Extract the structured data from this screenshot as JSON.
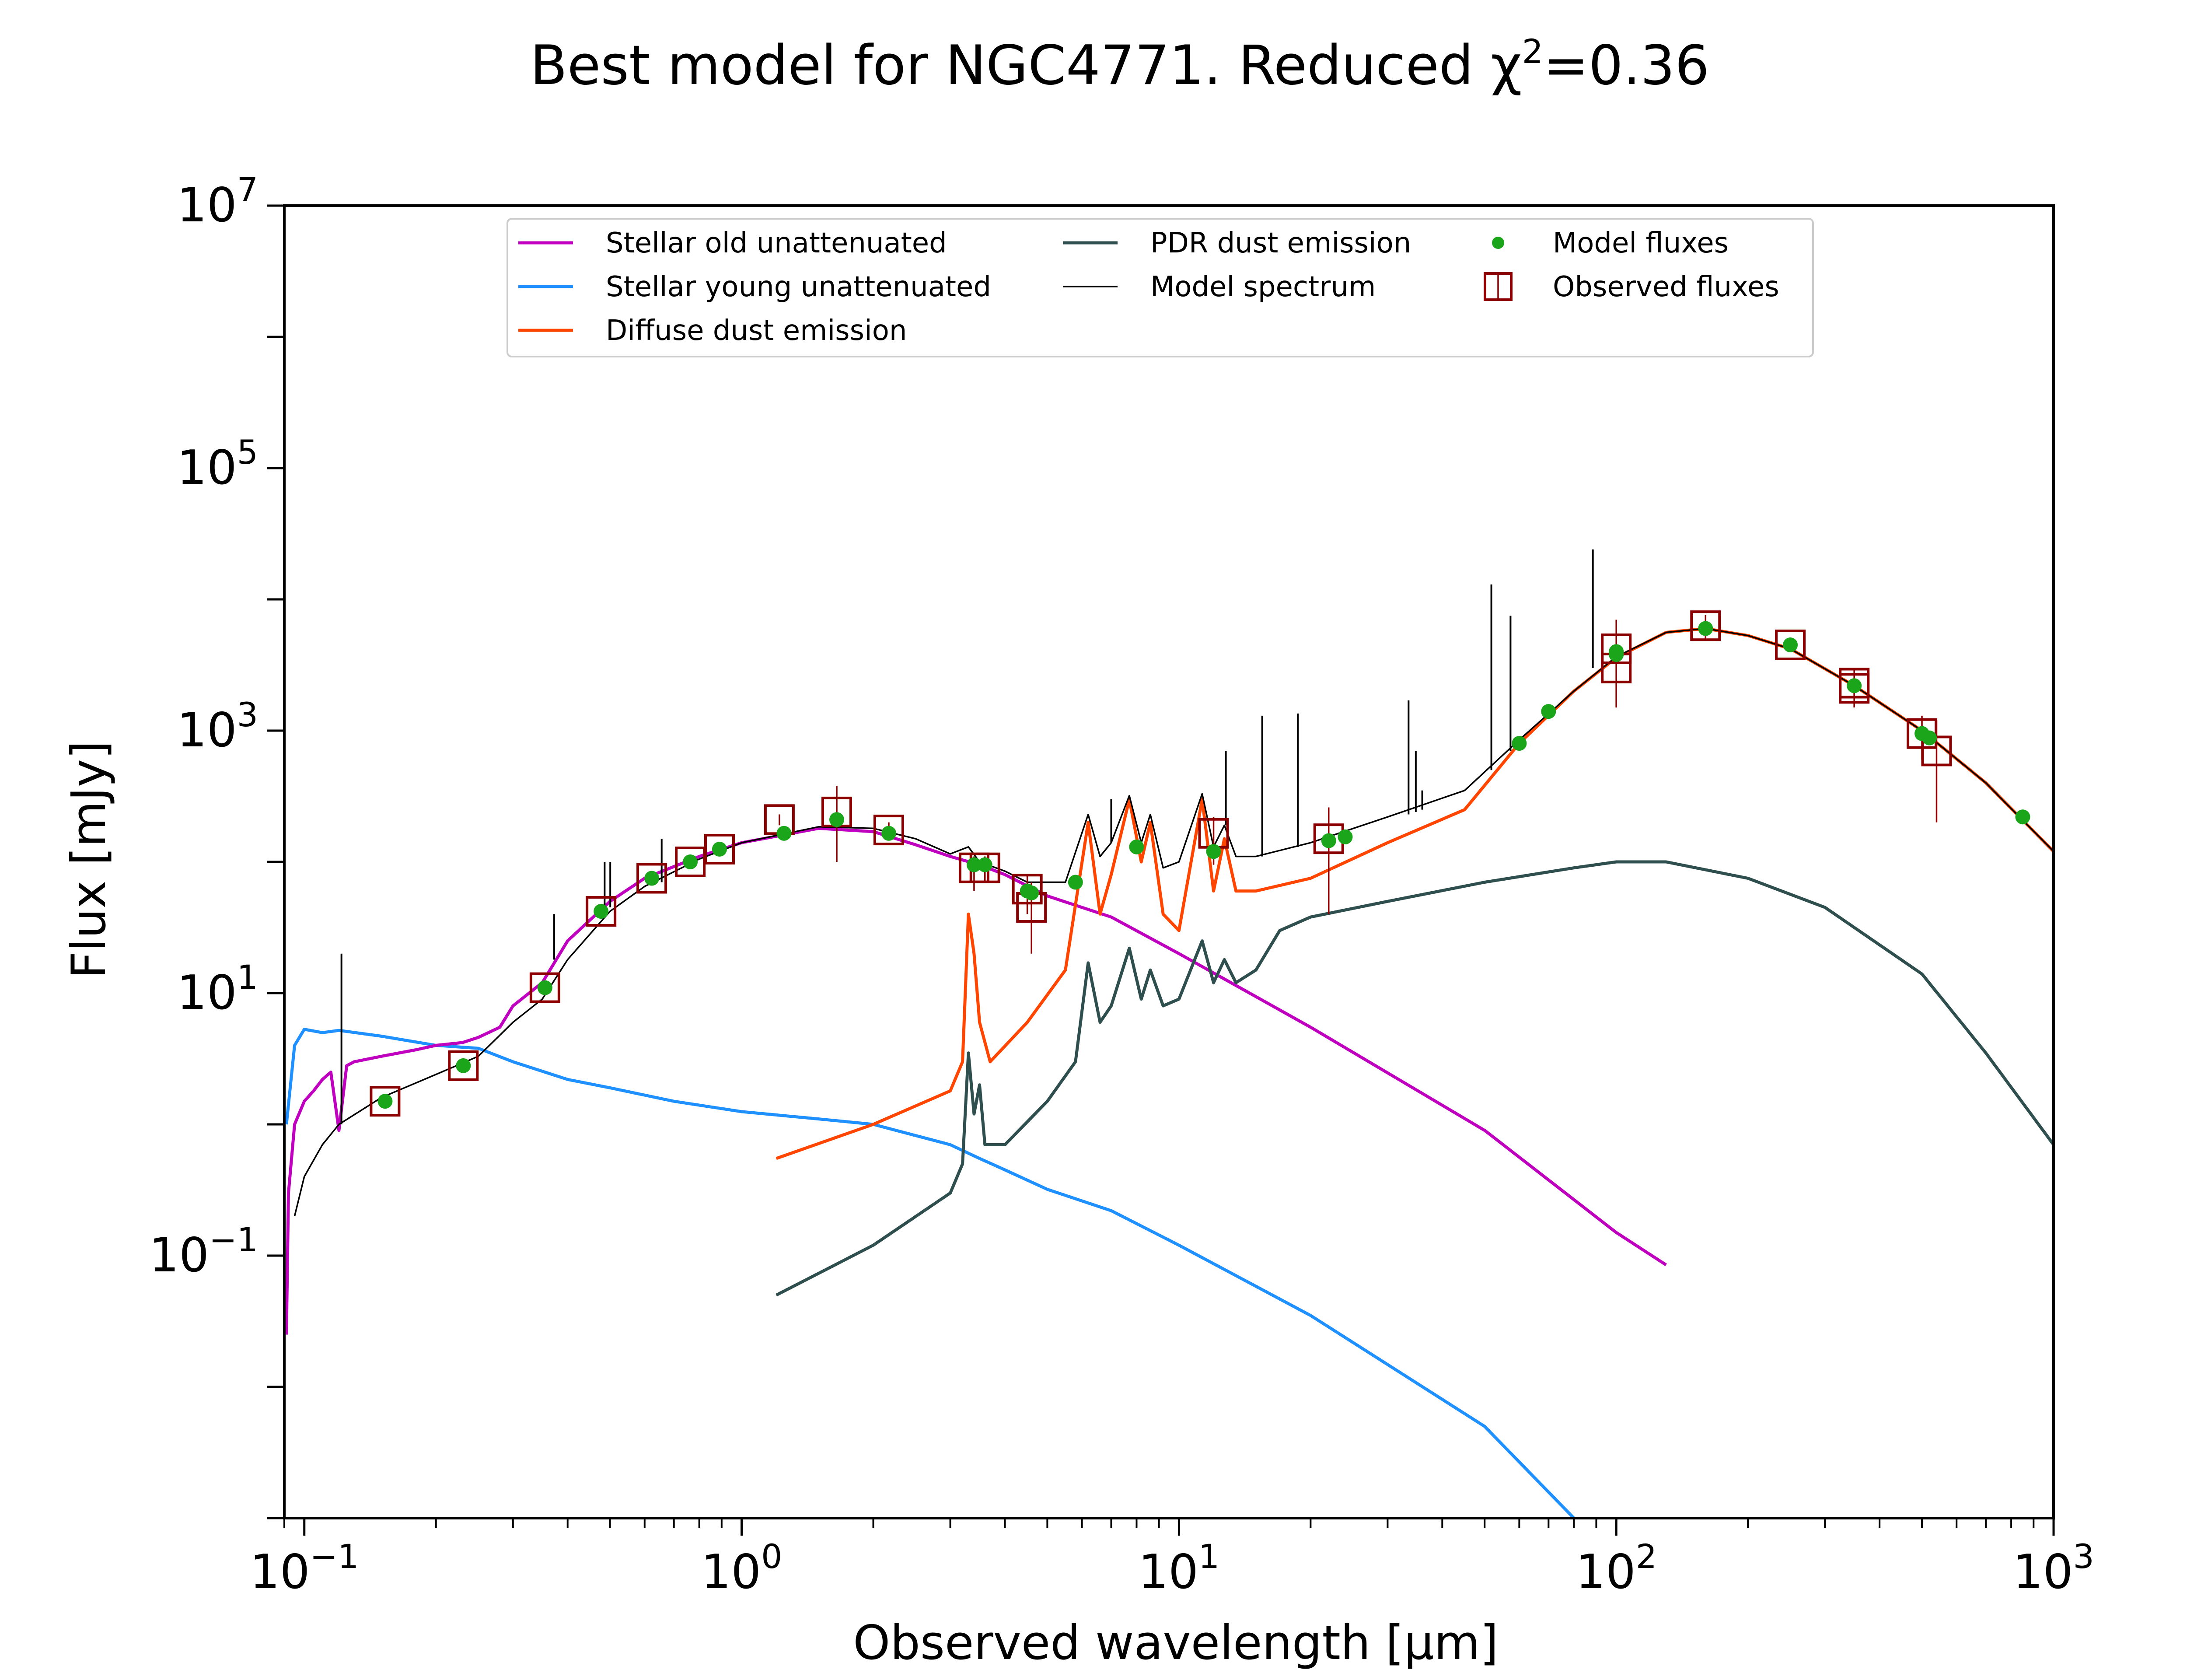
{
  "title": {
    "main": "Best model for NGC4771. Reduced χ",
    "sup": "2",
    "value": "=0.36"
  },
  "legend": {
    "placement": "top-center",
    "items": [
      {
        "key": "stellar_old",
        "label": "Stellar old unattenuated",
        "kind": "line"
      },
      {
        "key": "stellar_young",
        "label": "Stellar young unattenuated",
        "kind": "line"
      },
      {
        "key": "diffuse_dust",
        "label": "Diffuse dust emission",
        "kind": "line"
      },
      {
        "key": "pdr_dust",
        "label": "PDR dust emission",
        "kind": "line"
      },
      {
        "key": "model_spectrum",
        "label": "Model spectrum",
        "kind": "line"
      },
      {
        "key": "model_fluxes",
        "label": "Model fluxes",
        "kind": "dot"
      },
      {
        "key": "observed_fluxes",
        "label": "Observed fluxes",
        "kind": "square"
      }
    ]
  },
  "colors": {
    "stellar_old": "#BF00BF",
    "stellar_young": "#1E90FF",
    "diffuse_dust": "#FF4500",
    "pdr_dust": "#2F4F4F",
    "model_spectrum": "#000000",
    "model_fluxes": "#1AA51A",
    "observed_fluxes": "#8B0000"
  },
  "chart_data": {
    "type": "line",
    "title": "Best model for NGC4771. Reduced χ²=0.36",
    "xlabel": "Observed wavelength [μm]",
    "ylabel": "Flux [mJy]",
    "xscale": "log",
    "yscale": "log",
    "xlim": [
      0.09,
      1000
    ],
    "ylim": [
      0.001,
      10000000
    ],
    "grid": false,
    "x_ticks": [
      {
        "value": 0.1,
        "base": "10",
        "exp": "−1"
      },
      {
        "value": 1,
        "base": "10",
        "exp": "0"
      },
      {
        "value": 10,
        "base": "10",
        "exp": "1"
      },
      {
        "value": 100,
        "base": "10",
        "exp": "2"
      },
      {
        "value": 1000,
        "base": "10",
        "exp": "3"
      }
    ],
    "y_ticks": [
      {
        "value": 0.1,
        "base": "10",
        "exp": "−1"
      },
      {
        "value": 10,
        "base": "10",
        "exp": "1"
      },
      {
        "value": 1000,
        "base": "10",
        "exp": "3"
      },
      {
        "value": 100000,
        "base": "10",
        "exp": "5"
      },
      {
        "value": 10000000,
        "base": "10",
        "exp": "7"
      }
    ],
    "series": [
      {
        "name": "Stellar old unattenuated",
        "key": "stellar_old",
        "points": [
          [
            0.091,
            0.025
          ],
          [
            0.092,
            0.3
          ],
          [
            0.095,
            1.0
          ],
          [
            0.1,
            1.5
          ],
          [
            0.105,
            1.8
          ],
          [
            0.11,
            2.2
          ],
          [
            0.115,
            2.5
          ],
          [
            0.12,
            0.9
          ],
          [
            0.125,
            2.8
          ],
          [
            0.13,
            3.0
          ],
          [
            0.15,
            3.3
          ],
          [
            0.18,
            3.7
          ],
          [
            0.2,
            4.0
          ],
          [
            0.23,
            4.2
          ],
          [
            0.25,
            4.6
          ],
          [
            0.28,
            5.5
          ],
          [
            0.3,
            8.0
          ],
          [
            0.35,
            12
          ],
          [
            0.4,
            25
          ],
          [
            0.5,
            50
          ],
          [
            0.6,
            75
          ],
          [
            0.8,
            110
          ],
          [
            1.0,
            140
          ],
          [
            1.5,
            180
          ],
          [
            2.0,
            170
          ],
          [
            2.5,
            135
          ],
          [
            3.0,
            110
          ],
          [
            3.5,
            95
          ],
          [
            4.0,
            80
          ],
          [
            5.0,
            55
          ],
          [
            7.0,
            38
          ],
          [
            10,
            20
          ],
          [
            20,
            5.5
          ],
          [
            50,
            0.9
          ],
          [
            100,
            0.15
          ],
          [
            130,
            0.085
          ]
        ]
      },
      {
        "name": "Stellar young unattenuated",
        "key": "stellar_young",
        "points": [
          [
            0.091,
            1.0
          ],
          [
            0.095,
            4.0
          ],
          [
            0.1,
            5.3
          ],
          [
            0.11,
            5.0
          ],
          [
            0.12,
            5.2
          ],
          [
            0.15,
            4.7
          ],
          [
            0.2,
            4.0
          ],
          [
            0.25,
            3.8
          ],
          [
            0.3,
            3.0
          ],
          [
            0.4,
            2.2
          ],
          [
            0.5,
            1.9
          ],
          [
            0.7,
            1.5
          ],
          [
            1.0,
            1.25
          ],
          [
            1.5,
            1.1
          ],
          [
            2.0,
            1.0
          ],
          [
            3.0,
            0.7
          ],
          [
            3.5,
            0.55
          ],
          [
            4.0,
            0.45
          ],
          [
            5.0,
            0.32
          ],
          [
            7.0,
            0.22
          ],
          [
            10,
            0.12
          ],
          [
            20,
            0.035
          ],
          [
            50,
            0.005
          ],
          [
            80,
            0.001
          ]
        ]
      },
      {
        "name": "Diffuse dust emission",
        "key": "diffuse_dust",
        "points": [
          [
            1.2,
            0.55
          ],
          [
            2.0,
            1.0
          ],
          [
            3.0,
            1.8
          ],
          [
            3.2,
            3.0
          ],
          [
            3.3,
            40
          ],
          [
            3.4,
            20
          ],
          [
            3.5,
            6.0
          ],
          [
            3.7,
            3.0
          ],
          [
            4.5,
            6.0
          ],
          [
            5.5,
            15
          ],
          [
            6.2,
            200
          ],
          [
            6.6,
            40
          ],
          [
            7.0,
            80
          ],
          [
            7.7,
            300
          ],
          [
            8.2,
            100
          ],
          [
            8.6,
            200
          ],
          [
            9.2,
            40
          ],
          [
            10,
            30
          ],
          [
            11.3,
            300
          ],
          [
            12,
            60
          ],
          [
            12.7,
            150
          ],
          [
            13.5,
            60
          ],
          [
            15,
            60
          ],
          [
            20,
            75
          ],
          [
            30,
            140
          ],
          [
            45,
            250
          ],
          [
            60,
            800
          ],
          [
            80,
            2000
          ],
          [
            100,
            3600
          ],
          [
            130,
            5600
          ],
          [
            160,
            6000
          ],
          [
            200,
            5300
          ],
          [
            250,
            4200
          ],
          [
            350,
            2200
          ],
          [
            500,
            1000
          ],
          [
            700,
            400
          ],
          [
            1000,
            120
          ]
        ]
      },
      {
        "name": "PDR dust emission",
        "key": "pdr_dust",
        "points": [
          [
            1.2,
            0.05
          ],
          [
            2.0,
            0.12
          ],
          [
            3.0,
            0.3
          ],
          [
            3.2,
            0.5
          ],
          [
            3.3,
            3.5
          ],
          [
            3.4,
            1.2
          ],
          [
            3.5,
            2.0
          ],
          [
            3.6,
            0.7
          ],
          [
            4.0,
            0.7
          ],
          [
            5.0,
            1.5
          ],
          [
            5.8,
            3.0
          ],
          [
            6.2,
            17
          ],
          [
            6.6,
            6
          ],
          [
            7.0,
            8
          ],
          [
            7.7,
            22
          ],
          [
            8.2,
            9
          ],
          [
            8.6,
            15
          ],
          [
            9.2,
            8
          ],
          [
            10,
            9
          ],
          [
            11.3,
            25
          ],
          [
            12,
            12
          ],
          [
            12.7,
            18
          ],
          [
            13.5,
            12
          ],
          [
            15,
            15
          ],
          [
            17,
            30
          ],
          [
            20,
            38
          ],
          [
            30,
            50
          ],
          [
            50,
            70
          ],
          [
            80,
            90
          ],
          [
            100,
            100
          ],
          [
            130,
            100
          ],
          [
            200,
            75
          ],
          [
            300,
            45
          ],
          [
            500,
            14
          ],
          [
            700,
            3.5
          ],
          [
            1000,
            0.7
          ]
        ]
      },
      {
        "name": "Model spectrum",
        "key": "model_spectrum",
        "points": [
          [
            0.095,
            0.2
          ],
          [
            0.1,
            0.4
          ],
          [
            0.11,
            0.7
          ],
          [
            0.12,
            1.0
          ],
          [
            0.15,
            1.6
          ],
          [
            0.2,
            2.4
          ],
          [
            0.25,
            3.3
          ],
          [
            0.3,
            6.0
          ],
          [
            0.35,
            9
          ],
          [
            0.4,
            18
          ],
          [
            0.5,
            42
          ],
          [
            0.6,
            65
          ],
          [
            0.8,
            105
          ],
          [
            1.0,
            140
          ],
          [
            1.5,
            185
          ],
          [
            2.0,
            180
          ],
          [
            2.5,
            150
          ],
          [
            3.0,
            115
          ],
          [
            3.3,
            130
          ],
          [
            3.5,
            100
          ],
          [
            4.0,
            85
          ],
          [
            4.5,
            70
          ],
          [
            5.0,
            70
          ],
          [
            5.5,
            70
          ],
          [
            6.2,
            230
          ],
          [
            6.6,
            110
          ],
          [
            7.0,
            140
          ],
          [
            7.7,
            320
          ],
          [
            8.2,
            140
          ],
          [
            8.6,
            230
          ],
          [
            9.2,
            90
          ],
          [
            10,
            100
          ],
          [
            11.3,
            330
          ],
          [
            12,
            130
          ],
          [
            12.7,
            190
          ],
          [
            13.5,
            110
          ],
          [
            15,
            110
          ],
          [
            20,
            140
          ],
          [
            30,
            220
          ],
          [
            45,
            350
          ],
          [
            60,
            850
          ],
          [
            80,
            2000
          ],
          [
            100,
            3650
          ],
          [
            130,
            5600
          ],
          [
            160,
            6000
          ],
          [
            200,
            5300
          ],
          [
            250,
            4200
          ],
          [
            350,
            2200
          ],
          [
            500,
            1000
          ],
          [
            700,
            400
          ],
          [
            1000,
            120
          ]
        ]
      }
    ],
    "emission_lines": [
      {
        "x": 0.1216,
        "top": 20,
        "base": 1.0
      },
      {
        "x": 0.3727,
        "top": 40,
        "base": 18
      },
      {
        "x": 0.4861,
        "top": 100,
        "base": 42
      },
      {
        "x": 0.5007,
        "top": 100,
        "base": 45
      },
      {
        "x": 0.6563,
        "top": 150,
        "base": 70
      },
      {
        "x": 7.0,
        "top": 300,
        "base": 140
      },
      {
        "x": 12.8,
        "top": 700,
        "base": 190
      },
      {
        "x": 15.5,
        "top": 1300,
        "base": 110
      },
      {
        "x": 18.7,
        "top": 1350,
        "base": 130
      },
      {
        "x": 33.5,
        "top": 1700,
        "base": 230
      },
      {
        "x": 34.8,
        "top": 700,
        "base": 240
      },
      {
        "x": 36.0,
        "top": 350,
        "base": 250
      },
      {
        "x": 51.8,
        "top": 13000,
        "base": 500
      },
      {
        "x": 57.3,
        "top": 7500,
        "base": 700
      },
      {
        "x": 88.4,
        "top": 24000,
        "base": 3000
      }
    ],
    "model_fluxes": [
      [
        0.153,
        1.5
      ],
      [
        0.231,
        2.8
      ],
      [
        0.355,
        11
      ],
      [
        0.477,
        42
      ],
      [
        0.623,
        75
      ],
      [
        0.763,
        100
      ],
      [
        0.89,
        125
      ],
      [
        1.25,
        165
      ],
      [
        1.65,
        210
      ],
      [
        2.17,
        165
      ],
      [
        3.4,
        95
      ],
      [
        3.6,
        95
      ],
      [
        4.5,
        60
      ],
      [
        4.6,
        58
      ],
      [
        5.8,
        70
      ],
      [
        8.0,
        130
      ],
      [
        12,
        120
      ],
      [
        22,
        145
      ],
      [
        24,
        155
      ],
      [
        60,
        800
      ],
      [
        70,
        1400
      ],
      [
        100,
        4000
      ],
      [
        100,
        3800
      ],
      [
        160,
        6000
      ],
      [
        250,
        4500
      ],
      [
        350,
        2200
      ],
      [
        500,
        950
      ],
      [
        520,
        880
      ],
      [
        850,
        220
      ]
    ],
    "observed_fluxes": [
      {
        "x": 0.153,
        "y": 1.5,
        "err": [
          1.4,
          1.65
        ]
      },
      {
        "x": 0.231,
        "y": 2.8,
        "err": [
          2.6,
          3.0
        ]
      },
      {
        "x": 0.355,
        "y": 11,
        "err": [
          10,
          12
        ]
      },
      {
        "x": 0.477,
        "y": 42,
        "err": [
          38,
          46
        ]
      },
      {
        "x": 0.623,
        "y": 75,
        "err": [
          68,
          82
        ]
      },
      {
        "x": 0.763,
        "y": 100,
        "err": [
          90,
          110
        ]
      },
      {
        "x": 0.89,
        "y": 125,
        "err": [
          113,
          137
        ]
      },
      {
        "x": 1.22,
        "y": 210,
        "err": [
          190,
          230
        ]
      },
      {
        "x": 1.65,
        "y": 240,
        "err": [
          100,
          380
        ]
      },
      {
        "x": 2.17,
        "y": 175,
        "err": [
          150,
          200
        ]
      },
      {
        "x": 3.4,
        "y": 90,
        "err": [
          60,
          110
        ]
      },
      {
        "x": 3.6,
        "y": 90,
        "err": [
          70,
          110
        ]
      },
      {
        "x": 4.5,
        "y": 62,
        "err": [
          40,
          80
        ]
      },
      {
        "x": 4.6,
        "y": 45,
        "err": [
          20,
          70
        ]
      },
      {
        "x": 12,
        "y": 165,
        "err": [
          95,
          220
        ]
      },
      {
        "x": 22,
        "y": 150,
        "err": [
          40,
          260
        ]
      },
      {
        "x": 100,
        "y": 4200,
        "err": [
          1500,
          7000
        ]
      },
      {
        "x": 100,
        "y": 3000,
        "err": [
          1500,
          4500
        ]
      },
      {
        "x": 160,
        "y": 6300,
        "err": [
          5000,
          7600
        ]
      },
      {
        "x": 250,
        "y": 4500,
        "err": [
          4000,
          5000
        ]
      },
      {
        "x": 350,
        "y": 2300,
        "err": [
          1500,
          3000
        ]
      },
      {
        "x": 350,
        "y": 2100,
        "err": [
          1800,
          2400
        ]
      },
      {
        "x": 500,
        "y": 950,
        "err": [
          600,
          1300
        ]
      },
      {
        "x": 540,
        "y": 700,
        "err": [
          200,
          1200
        ]
      }
    ]
  }
}
